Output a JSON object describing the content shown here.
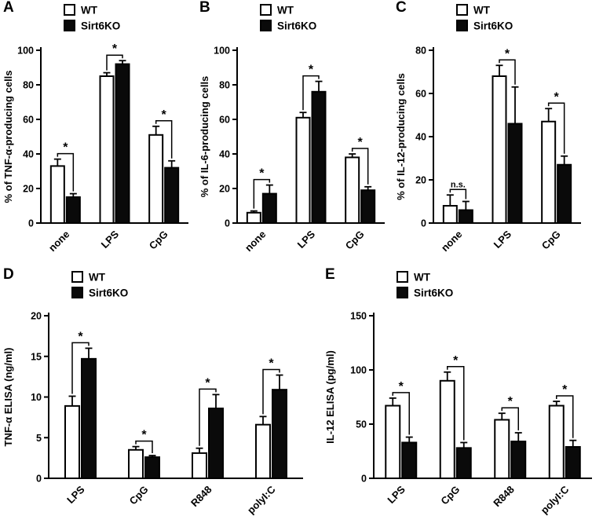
{
  "figure": {
    "background": "#ffffff",
    "bar_stroke": "#000000",
    "wt_fill": "#ffffff",
    "ko_fill": "#0a0a0a"
  },
  "legend": {
    "series": [
      "WT",
      "Sirt6KO"
    ]
  },
  "chart_data": [
    {
      "type": "bar",
      "panel": "A",
      "ylabel": "% of TNF-α-producing cells",
      "xlabel": "",
      "ylim": [
        0,
        100
      ],
      "yticks": [
        0,
        20,
        40,
        60,
        80,
        100
      ],
      "categories": [
        "none",
        "LPS",
        "CpG"
      ],
      "series": [
        {
          "name": "WT",
          "fill": "#ffffff",
          "values": [
            33,
            85,
            51
          ],
          "errors": [
            4,
            2,
            5
          ]
        },
        {
          "name": "Sirt6KO",
          "fill": "#0a0a0a",
          "values": [
            15,
            92,
            32
          ],
          "errors": [
            2,
            2,
            4
          ]
        }
      ],
      "significance": [
        "*",
        "*",
        "*"
      ],
      "legend_position": "top-left",
      "grid": false
    },
    {
      "type": "bar",
      "panel": "B",
      "ylabel": "% of IL-6-producing cells",
      "xlabel": "",
      "ylim": [
        0,
        100
      ],
      "yticks": [
        0,
        20,
        40,
        60,
        80,
        100
      ],
      "categories": [
        "none",
        "LPS",
        "CpG"
      ],
      "series": [
        {
          "name": "WT",
          "fill": "#ffffff",
          "values": [
            6,
            61,
            38
          ],
          "errors": [
            1,
            3,
            2
          ]
        },
        {
          "name": "Sirt6KO",
          "fill": "#0a0a0a",
          "values": [
            17,
            76,
            19
          ],
          "errors": [
            5,
            6,
            2
          ]
        }
      ],
      "significance": [
        "*",
        "*",
        "*"
      ],
      "legend_position": "top-left",
      "grid": false
    },
    {
      "type": "bar",
      "panel": "C",
      "ylabel": "% of IL-12-producing cells",
      "xlabel": "",
      "ylim": [
        0,
        80
      ],
      "yticks": [
        0,
        20,
        40,
        60,
        80
      ],
      "categories": [
        "none",
        "LPS",
        "CpG"
      ],
      "series": [
        {
          "name": "WT",
          "fill": "#ffffff",
          "values": [
            8,
            68,
            47
          ],
          "errors": [
            5,
            5,
            6
          ]
        },
        {
          "name": "Sirt6KO",
          "fill": "#0a0a0a",
          "values": [
            6,
            46,
            27
          ],
          "errors": [
            4,
            17,
            4
          ]
        }
      ],
      "significance": [
        "n.s.",
        "*",
        "*"
      ],
      "legend_position": "top-left",
      "grid": false
    },
    {
      "type": "bar",
      "panel": "D",
      "ylabel": "TNF-α ELISA (ng/ml)",
      "xlabel": "",
      "ylim": [
        0,
        20
      ],
      "yticks": [
        0,
        5,
        10,
        15,
        20
      ],
      "categories": [
        "LPS",
        "CpG",
        "R848",
        "polyI:C"
      ],
      "series": [
        {
          "name": "WT",
          "fill": "#ffffff",
          "values": [
            8.9,
            3.5,
            3.1,
            6.6
          ],
          "errors": [
            1.2,
            0.4,
            0.6,
            1.0
          ]
        },
        {
          "name": "Sirt6KO",
          "fill": "#0a0a0a",
          "values": [
            14.7,
            2.6,
            8.6,
            10.9
          ],
          "errors": [
            1.3,
            0.2,
            1.7,
            1.8
          ]
        }
      ],
      "significance": [
        "*",
        "*",
        "*",
        "*"
      ],
      "legend_position": "top-left",
      "grid": false
    },
    {
      "type": "bar",
      "panel": "E",
      "ylabel": "IL-12 ELISA (pg/ml)",
      "xlabel": "",
      "ylim": [
        0,
        150
      ],
      "yticks": [
        0,
        50,
        100,
        150
      ],
      "categories": [
        "LPS",
        "CpG",
        "R848",
        "polyI:C"
      ],
      "series": [
        {
          "name": "WT",
          "fill": "#ffffff",
          "values": [
            67,
            90,
            54,
            67
          ],
          "errors": [
            7,
            8,
            6,
            4
          ]
        },
        {
          "name": "Sirt6KO",
          "fill": "#0a0a0a",
          "values": [
            33,
            28,
            34,
            29
          ],
          "errors": [
            5,
            5,
            8,
            6
          ]
        }
      ],
      "significance": [
        "*",
        "*",
        "*",
        "*"
      ],
      "legend_position": "top-left",
      "grid": false
    }
  ]
}
